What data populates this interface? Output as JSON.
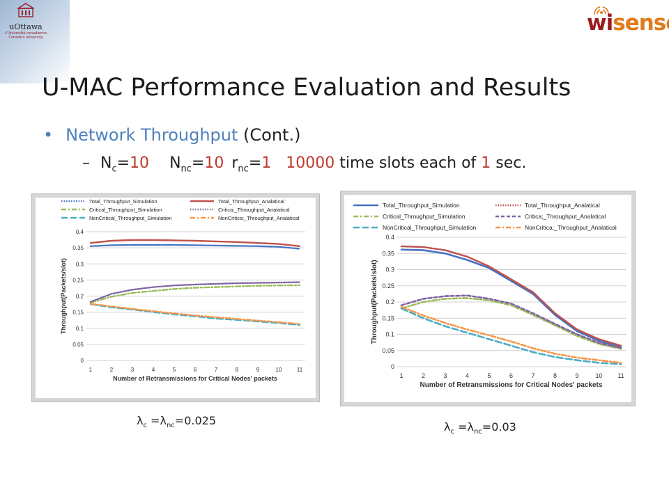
{
  "header": {
    "uottawa_name": "uOttawa",
    "uottawa_sub1": "L'Université canadienne",
    "uottawa_sub2": "Canada's university",
    "brand_wi": "wi",
    "brand_sense": "sense",
    "brand_colors": {
      "wi": "#9b1b1f",
      "sense": "#e07c1e"
    }
  },
  "slide": {
    "title": "U-MAC Performance Evaluation and Results",
    "bullet_main": "Network Throughput",
    "bullet_cont": " (Cont.)",
    "dash": "–",
    "params": {
      "n": "N",
      "n_c_sub": "c",
      "n_c_eq": "=",
      "n_c_val": "10",
      "n_nc_sub": "nc",
      "n_nc_eq": "=",
      "n_nc_val": "10",
      "r": "r",
      "r_nc_sub": "nc",
      "r_nc_eq": "=",
      "r_nc_val": "1",
      "slots_val": "10000",
      "slots_text": " time slots each of ",
      "sec_val": "1",
      "sec_text": " sec."
    },
    "caption_left": {
      "lam": "λ",
      "sub_c": "c",
      "mid": " =λ",
      "sub_nc": "nc",
      "value": "=0.025"
    },
    "caption_right": {
      "lam": "λ",
      "sub_c": "c",
      "mid": " =λ",
      "sub_nc": "nc",
      "value": "=0.03"
    }
  },
  "chart_data": [
    {
      "type": "line",
      "ylabel": "Throughput(Packets/slot)",
      "xlabel": "Number of Retransmissions for Critical Nodes' packets",
      "x": [
        1,
        2,
        3,
        4,
        5,
        6,
        7,
        8,
        9,
        10,
        11
      ],
      "ylim": [
        0,
        0.4
      ],
      "yticks": [
        "0",
        "0.05",
        "0.1",
        "0.15",
        "0.2",
        "0.25",
        "0.3",
        "0.35",
        "0.4"
      ],
      "grid": true,
      "legend_position": "top",
      "series": [
        {
          "name": "Total_Throughput_Simulation",
          "color": "#4472c4",
          "dash": "dotted",
          "values": [
            0.355,
            0.358,
            0.359,
            0.359,
            0.359,
            0.358,
            0.357,
            0.356,
            0.355,
            0.353,
            0.347
          ]
        },
        {
          "name": "Total_Throughput_Analatical",
          "color": "#c0504d",
          "dash": "solid",
          "values": [
            0.365,
            0.372,
            0.374,
            0.374,
            0.373,
            0.372,
            0.37,
            0.368,
            0.365,
            0.362,
            0.355
          ]
        },
        {
          "name": "Critical_Throughput_Simulation",
          "color": "#9bbb59",
          "dash": "dashdot",
          "values": [
            0.18,
            0.198,
            0.21,
            0.216,
            0.222,
            0.226,
            0.228,
            0.23,
            0.232,
            0.233,
            0.234
          ]
        },
        {
          "name": "Critica;_Throughput_Analatical",
          "color": "#8064a2",
          "dash": "dotted",
          "values": [
            0.182,
            0.207,
            0.22,
            0.228,
            0.233,
            0.236,
            0.238,
            0.24,
            0.241,
            0.242,
            0.243
          ]
        },
        {
          "name": "NonCritical_Throughput_Simulation",
          "color": "#4bacc6",
          "dash": "longdash",
          "values": [
            0.175,
            0.165,
            0.158,
            0.15,
            0.143,
            0.137,
            0.13,
            0.126,
            0.121,
            0.116,
            0.11
          ]
        },
        {
          "name": "NonCritica;_Throughput_Analatical",
          "color": "#f79646",
          "dash": "dashdot",
          "values": [
            0.176,
            0.168,
            0.16,
            0.153,
            0.146,
            0.14,
            0.134,
            0.129,
            0.124,
            0.119,
            0.113
          ]
        }
      ]
    },
    {
      "type": "line",
      "ylabel": "Throughput(Packets/slot)",
      "xlabel": "Number of Retransmissions for Critical Nodes' packets",
      "x": [
        1,
        2,
        3,
        4,
        5,
        6,
        7,
        8,
        9,
        10,
        11
      ],
      "ylim": [
        0,
        0.4
      ],
      "yticks": [
        "0",
        "0.05",
        "0.1",
        "0.15",
        "0.2",
        "0.25",
        "0.3",
        "0.35",
        "0.4"
      ],
      "grid": true,
      "legend_position": "top",
      "series": [
        {
          "name": "Total_Throughput_Simulation",
          "color": "#4472c4",
          "dash": "solid",
          "values": [
            0.362,
            0.36,
            0.35,
            0.33,
            0.305,
            0.265,
            0.225,
            0.16,
            0.11,
            0.08,
            0.06
          ]
        },
        {
          "name": "Total_Throughput_Analatical",
          "color": "#c0504d",
          "dash": "dotted",
          "values": [
            0.372,
            0.37,
            0.36,
            0.34,
            0.31,
            0.27,
            0.23,
            0.165,
            0.115,
            0.085,
            0.065
          ]
        },
        {
          "name": "Critical_Throughput_Simulation",
          "color": "#9bbb59",
          "dash": "dashdot",
          "values": [
            0.18,
            0.2,
            0.21,
            0.212,
            0.205,
            0.19,
            0.16,
            0.128,
            0.095,
            0.07,
            0.055
          ]
        },
        {
          "name": "Critica;_Throughput_Analatical",
          "color": "#8064a2",
          "dash": "dash",
          "values": [
            0.19,
            0.21,
            0.218,
            0.22,
            0.21,
            0.195,
            0.165,
            0.132,
            0.1,
            0.074,
            0.058
          ]
        },
        {
          "name": "NonCritical_Throughput_Simulation",
          "color": "#4bacc6",
          "dash": "longdash",
          "values": [
            0.18,
            0.15,
            0.125,
            0.105,
            0.085,
            0.065,
            0.045,
            0.03,
            0.02,
            0.012,
            0.008
          ]
        },
        {
          "name": "NonCritica;_Throughput_Analatical",
          "color": "#f79646",
          "dash": "dashdot",
          "values": [
            0.185,
            0.158,
            0.135,
            0.115,
            0.097,
            0.078,
            0.057,
            0.04,
            0.028,
            0.02,
            0.012
          ]
        }
      ]
    }
  ]
}
